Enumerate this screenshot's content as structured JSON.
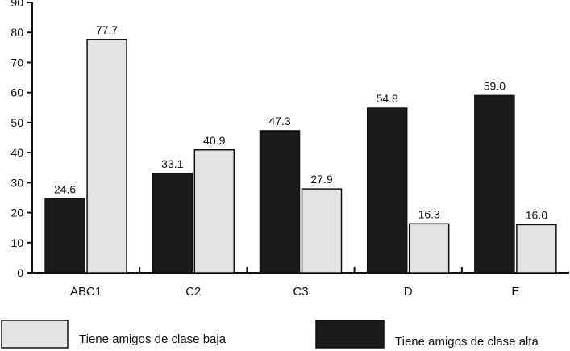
{
  "chart_data": {
    "type": "bar",
    "title": "",
    "xlabel": "",
    "ylabel": "",
    "categories": [
      "ABC1",
      "C2",
      "C3",
      "D",
      "E"
    ],
    "series": [
      {
        "name": "Tiene amigos de clase alta",
        "color": "#1a1a1a",
        "values": [
          24.6,
          33.1,
          47.3,
          54.8,
          59.0
        ],
        "labels": [
          "24.6",
          "33.1",
          "47.3",
          "54.8",
          "59.0"
        ]
      },
      {
        "name": "Tiene amigos de clase baja",
        "color": "#e3e3e3",
        "values": [
          77.7,
          40.9,
          27.9,
          16.3,
          16.0
        ],
        "labels": [
          "77.7",
          "40.9",
          "27.9",
          "16.3",
          "16.0"
        ]
      }
    ],
    "ylim": [
      0,
      90
    ],
    "yticks": [
      0,
      10,
      20,
      30,
      40,
      50,
      60,
      70,
      80,
      90
    ],
    "grid": false,
    "legend": {
      "placement": "bottom",
      "entries": [
        {
          "name": "Tiene amigos de clase baja",
          "color": "#e3e3e3"
        },
        {
          "name": "Tiene amigos de clase alta",
          "color": "#1a1a1a"
        }
      ]
    }
  }
}
